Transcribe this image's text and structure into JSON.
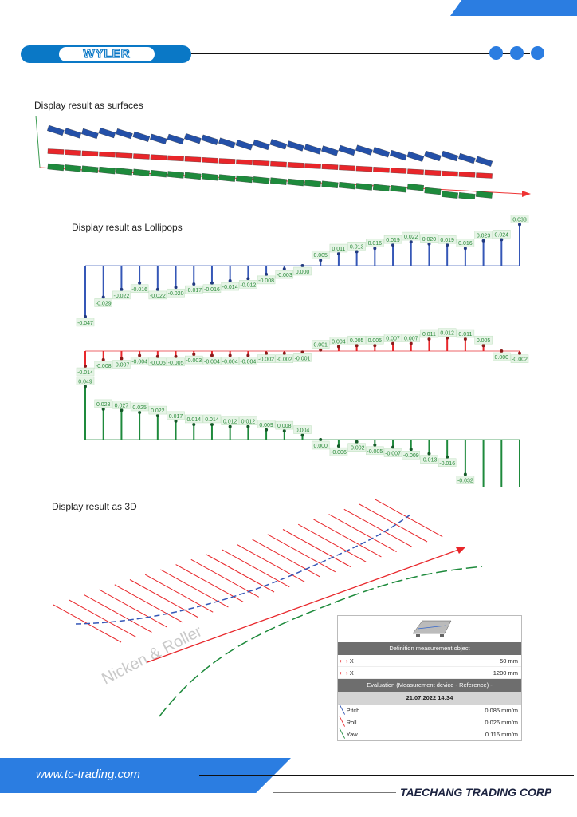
{
  "header": {
    "logo_text": "WYLER",
    "accent": "#2b7de1",
    "logo_color": "#0a78c6"
  },
  "sections": {
    "surfaces": "Display result as surfaces",
    "lollipops": "Display result as Lollipops",
    "three_d": "Display result as 3D"
  },
  "watermark": "Nicken & Roller",
  "chart_data": [
    {
      "type": "lollipop",
      "series": [
        {
          "color": "#3557b7",
          "values": [
            -0.047,
            -0.029,
            -0.022,
            -0.016,
            -0.022,
            -0.02,
            -0.017,
            -0.016,
            -0.014,
            -0.012,
            -0.008,
            -0.003,
            0.0,
            0.005,
            0.011,
            0.013,
            0.016,
            0.019,
            0.022,
            0.02,
            0.019,
            0.016,
            0.023,
            0.024,
            0.038
          ],
          "labels": [
            "-0.047",
            "-0.029",
            "-0.022",
            "-0.016",
            "-0.022",
            "-0.020",
            "-0.017",
            "-0.016",
            "-0.014",
            "-0.012",
            "-0.008",
            "-0.003",
            "0.000",
            "0.005",
            "0.011",
            "0.013",
            "0.016",
            "0.019",
            "0.022",
            "0.020",
            "0.019",
            "0.016",
            "0.023",
            "0.024",
            "0.038"
          ]
        }
      ]
    },
    {
      "type": "lollipop",
      "series": [
        {
          "color": "#e8262a",
          "values": [
            -0.014,
            -0.008,
            -0.007,
            -0.004,
            -0.005,
            -0.005,
            -0.003,
            -0.004,
            -0.004,
            -0.004,
            -0.002,
            -0.002,
            -0.001,
            0.001,
            0.004,
            0.005,
            0.005,
            0.007,
            0.007,
            0.011,
            0.012,
            0.011,
            0.005,
            0.0,
            -0.002
          ],
          "labels": [
            "-0.014",
            "-0.008",
            "-0.007",
            "-0.004",
            "-0.005",
            "-0.005",
            "-0.003",
            "-0.004",
            "-0.004",
            "-0.004",
            "-0.002",
            "-0.002",
            "-0.001",
            "0.001",
            "0.004",
            "0.005",
            "0.005",
            "0.007",
            "0.007",
            "0.011",
            "0.012",
            "0.011",
            "0.005",
            "0.000",
            "-0.002"
          ]
        }
      ]
    },
    {
      "type": "lollipop",
      "series": [
        {
          "color": "#1e8a3c",
          "values": [
            0.049,
            0.028,
            0.027,
            0.025,
            0.022,
            0.017,
            0.014,
            0.014,
            0.012,
            0.012,
            0.009,
            0.008,
            0.004,
            0.0,
            -0.006,
            -0.002,
            -0.005,
            -0.007,
            -0.009,
            -0.013,
            -0.016,
            -0.032,
            null,
            null,
            null
          ],
          "labels": [
            "0.049",
            "0.028",
            "0.027",
            "0.025",
            "0.022",
            "0.017",
            "0.014",
            "0.014",
            "0.012",
            "0.012",
            "0.009",
            "0.008",
            "0.004",
            "0.000",
            "-0.006",
            "-0.002",
            "-0.005",
            "-0.007",
            "-0.009",
            "-0.013",
            "-0.016",
            "-0.032",
            "",
            "",
            ""
          ]
        }
      ]
    }
  ],
  "info_panel": {
    "definition_header": "Definition measurement object",
    "rows1": [
      {
        "label": "X",
        "value": "50 mm"
      },
      {
        "label": "X",
        "value": "1200 mm"
      }
    ],
    "evaluation_header": "Evaluation (Measurement device - Reference)  -",
    "date": "21.07.2022 14:34",
    "rows2": [
      {
        "label": "Pitch",
        "value": "0.085 mm/m",
        "color": "#2a4fb0"
      },
      {
        "label": "Roll",
        "value": "0.026 mm/m",
        "color": "#e8262a"
      },
      {
        "label": "Yaw",
        "value": "0.116 mm/m",
        "color": "#1e8a3c"
      }
    ]
  },
  "footer": {
    "url": "www.tc-trading.com",
    "company": "TAECHANG TRADING CORP"
  }
}
